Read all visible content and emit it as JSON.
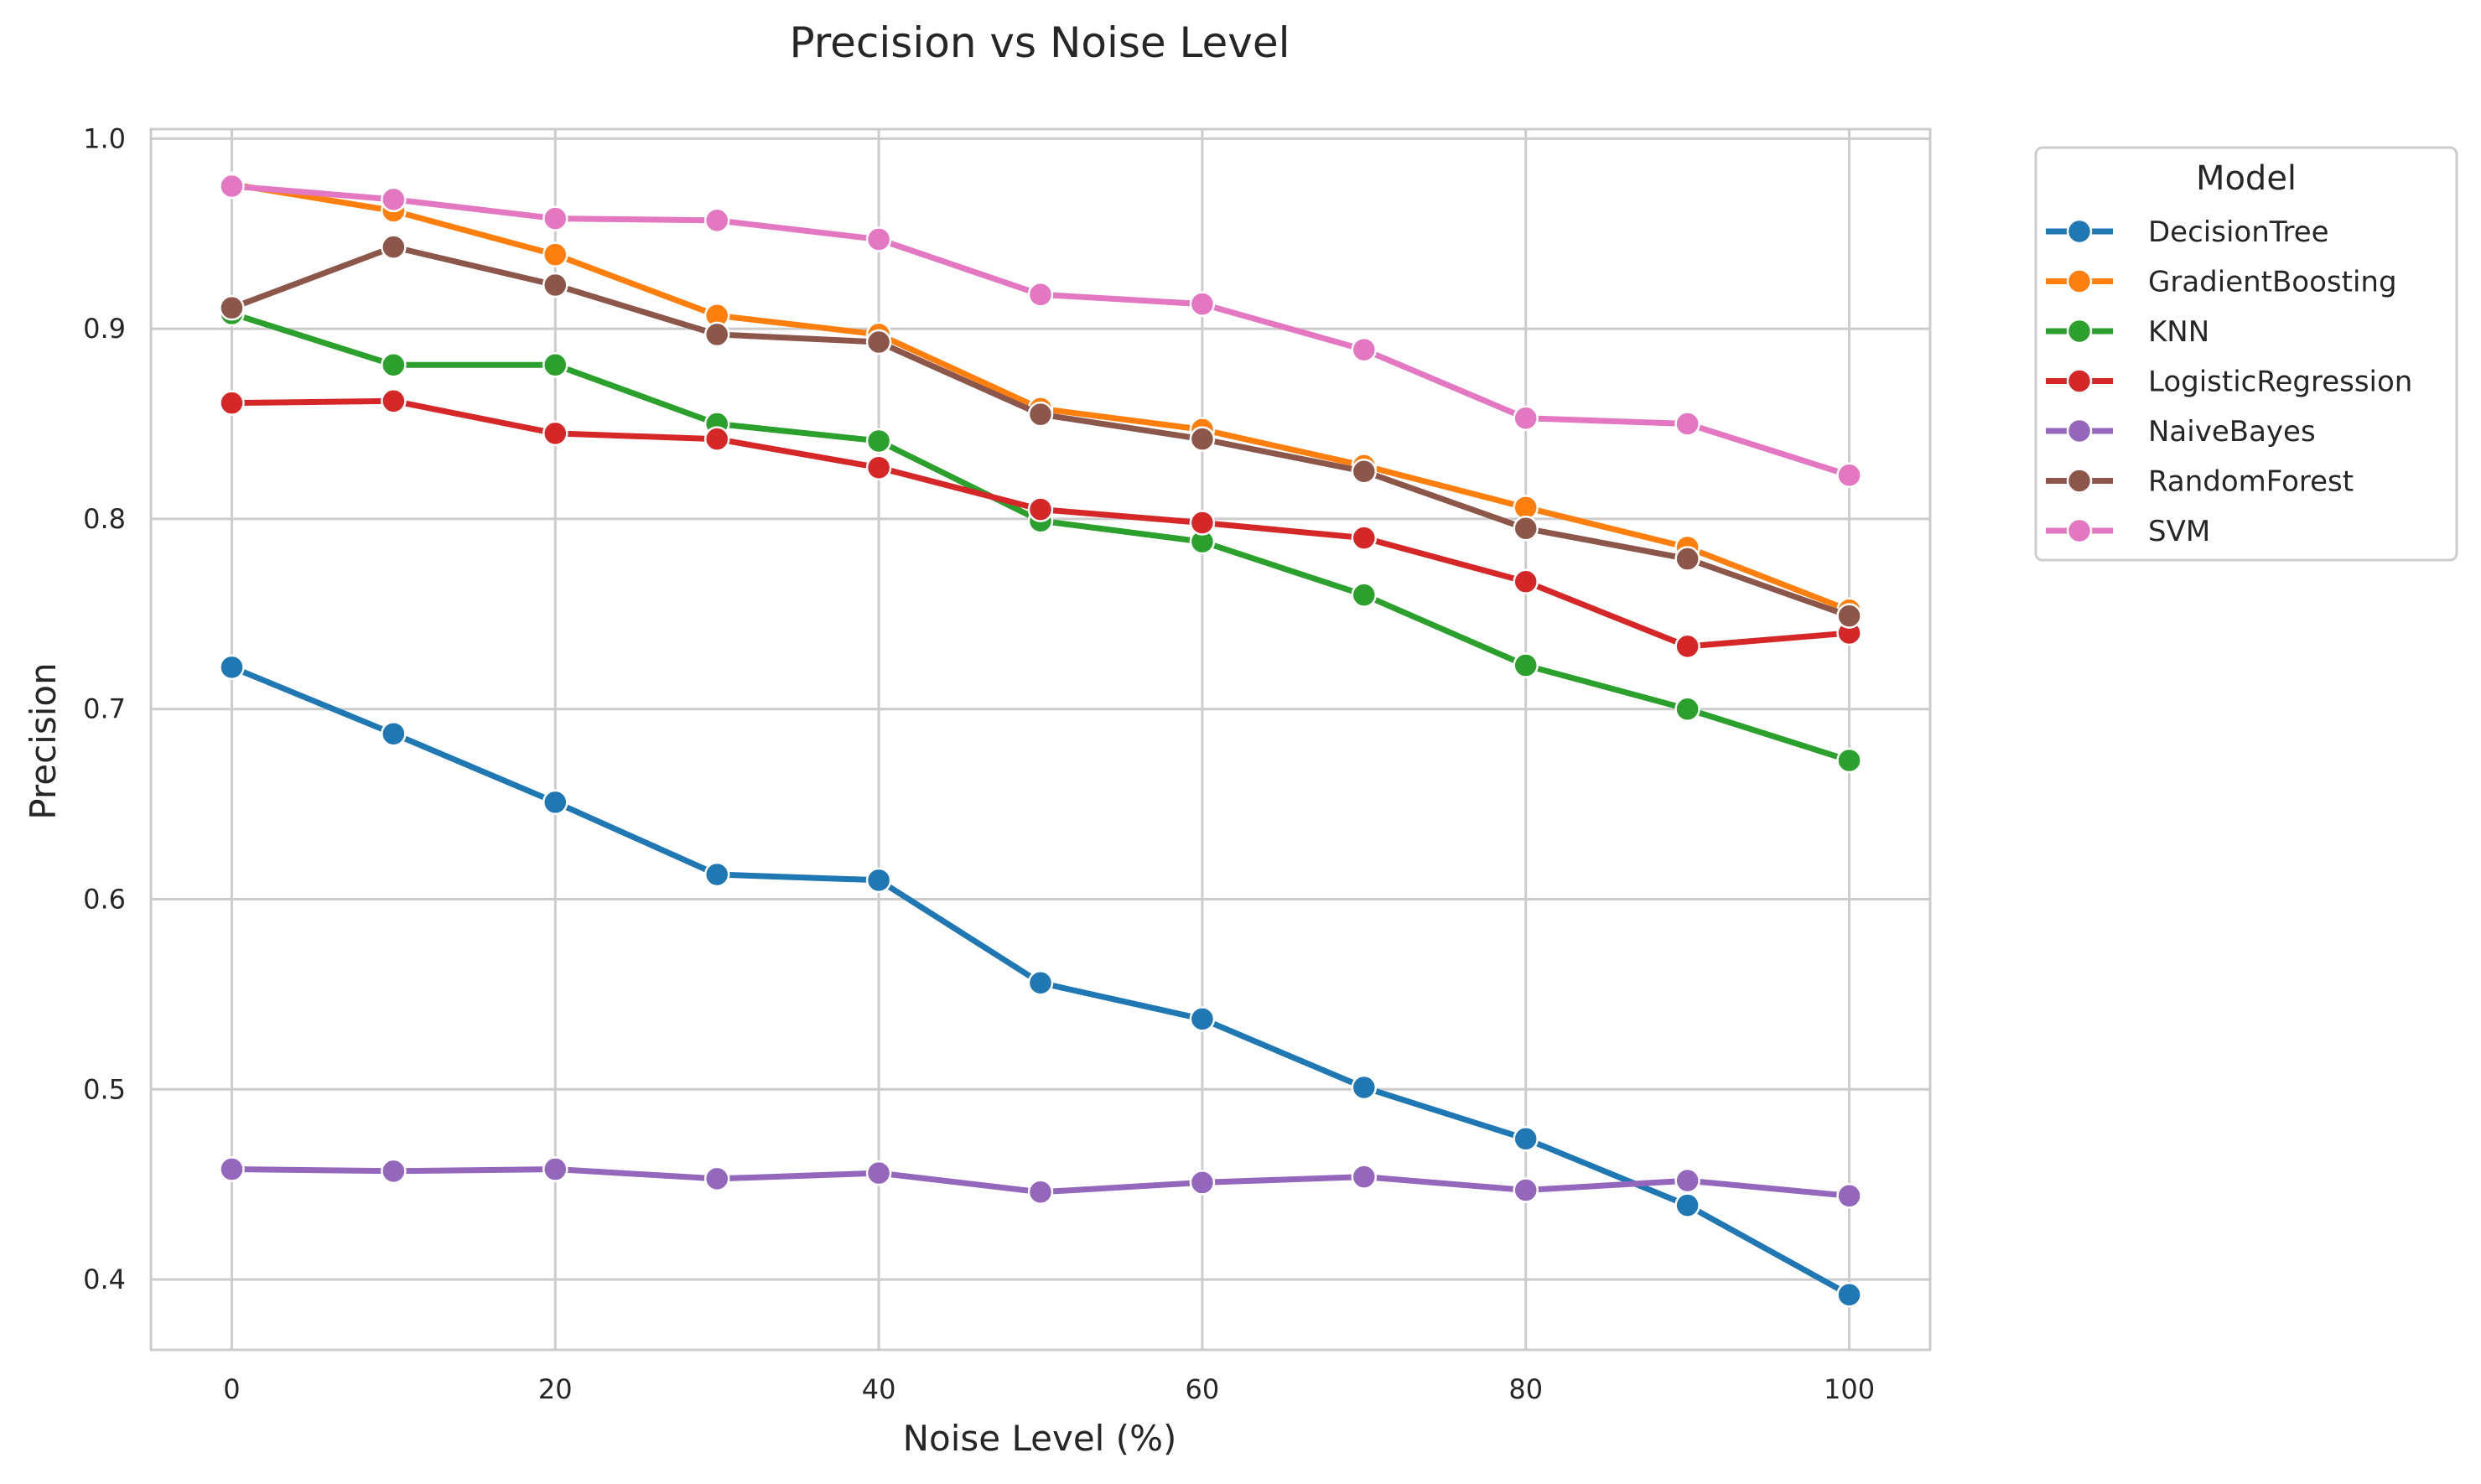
{
  "chart_data": {
    "type": "line",
    "title": "Precision vs Noise Level",
    "xlabel": "Noise Level (%)",
    "ylabel": "Precision",
    "x": [
      0,
      10,
      20,
      30,
      40,
      50,
      60,
      70,
      80,
      90,
      100
    ],
    "xlim": [
      -5,
      105
    ],
    "ylim": [
      0.363,
      1.005
    ],
    "xticks": [
      0,
      20,
      40,
      60,
      80,
      100
    ],
    "xtick_labels": [
      "0",
      "20",
      "40",
      "60",
      "80",
      "100"
    ],
    "yticks": [
      0.4,
      0.5,
      0.6,
      0.7,
      0.8,
      0.9,
      1.0
    ],
    "ytick_labels": [
      "0.4",
      "0.5",
      "0.6",
      "0.7",
      "0.8",
      "0.9",
      "1.0"
    ],
    "grid": true,
    "legend": {
      "title": "Model",
      "placement": "outside-top-right"
    },
    "series": [
      {
        "name": "DecisionTree",
        "color": "#1f77b4",
        "values": [
          0.722,
          0.687,
          0.651,
          0.613,
          0.61,
          0.556,
          0.537,
          0.501,
          0.474,
          0.439,
          0.392
        ]
      },
      {
        "name": "GradientBoosting",
        "color": "#ff7f0e",
        "values": [
          0.976,
          0.962,
          0.939,
          0.907,
          0.897,
          0.858,
          0.847,
          0.828,
          0.806,
          0.785,
          0.752
        ]
      },
      {
        "name": "KNN",
        "color": "#2ca02c",
        "values": [
          0.908,
          0.881,
          0.881,
          0.85,
          0.841,
          0.799,
          0.788,
          0.76,
          0.723,
          0.7,
          0.673
        ]
      },
      {
        "name": "LogisticRegression",
        "color": "#d62728",
        "values": [
          0.861,
          0.862,
          0.845,
          0.842,
          0.827,
          0.805,
          0.798,
          0.79,
          0.767,
          0.733,
          0.74
        ]
      },
      {
        "name": "NaiveBayes",
        "color": "#9467bd",
        "values": [
          0.458,
          0.457,
          0.458,
          0.453,
          0.456,
          0.446,
          0.451,
          0.454,
          0.447,
          0.452,
          0.444
        ]
      },
      {
        "name": "RandomForest",
        "color": "#8c564b",
        "values": [
          0.911,
          0.943,
          0.923,
          0.897,
          0.893,
          0.855,
          0.842,
          0.825,
          0.795,
          0.779,
          0.749
        ]
      },
      {
        "name": "SVM",
        "color": "#e377c2",
        "values": [
          0.975,
          0.968,
          0.958,
          0.957,
          0.947,
          0.918,
          0.913,
          0.889,
          0.853,
          0.85,
          0.823
        ]
      }
    ]
  }
}
